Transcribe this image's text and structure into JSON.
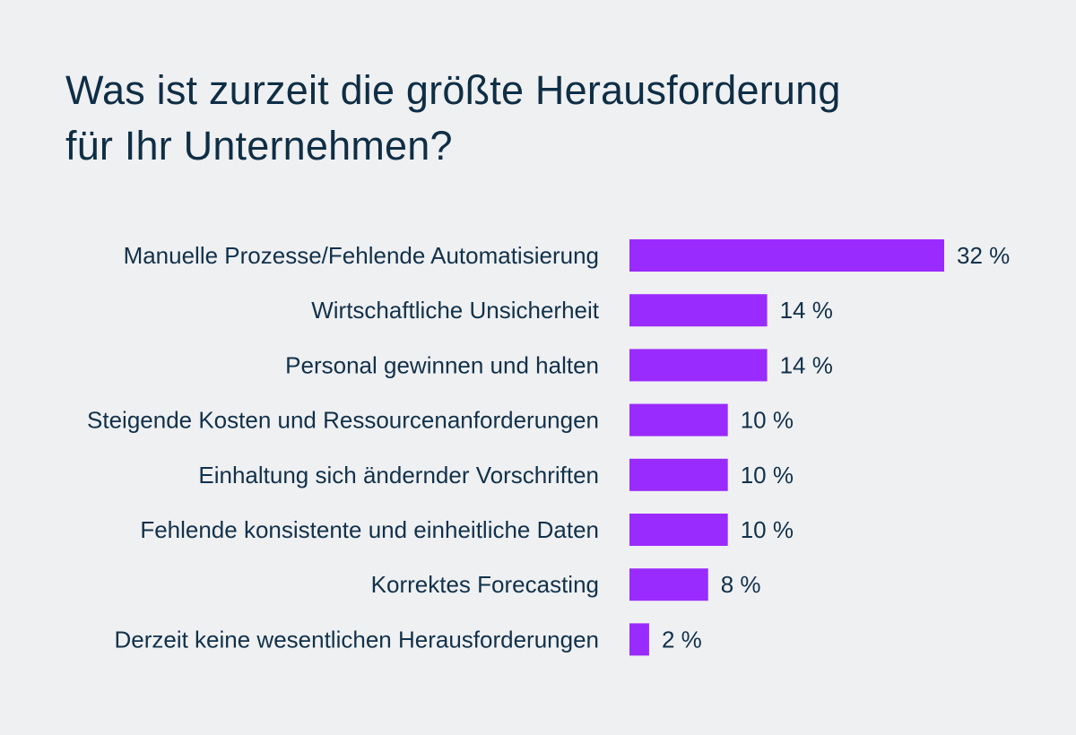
{
  "title_line1": "Was ist zurzeit die größte Herausforderung",
  "title_line2": "für Ihr Unternehmen?",
  "chart_data": {
    "type": "bar",
    "orientation": "horizontal",
    "title": "Was ist zurzeit die größte Herausforderung für Ihr Unternehmen?",
    "xlabel": "",
    "ylabel": "",
    "unit": "%",
    "categories": [
      "Manuelle Prozesse/Fehlende Automatisierung",
      "Wirtschaftliche Unsicherheit",
      "Personal gewinnen und halten",
      "Steigende Kosten und Ressourcenanforderungen",
      "Einhaltung sich ändernder Vorschriften",
      "Fehlende konsistente und einheitliche Daten",
      "Korrektes Forecasting",
      "Derzeit keine wesentlichen Herausforderungen"
    ],
    "values": [
      32,
      14,
      14,
      10,
      10,
      10,
      8,
      2
    ],
    "value_labels": [
      "32 %",
      "14 %",
      "14 %",
      "10 %",
      "10 %",
      "10 %",
      "8 %",
      "2 %"
    ],
    "xlim": [
      0,
      32
    ],
    "grid": false,
    "legend": "none",
    "bar_color": "#9a2bff"
  }
}
